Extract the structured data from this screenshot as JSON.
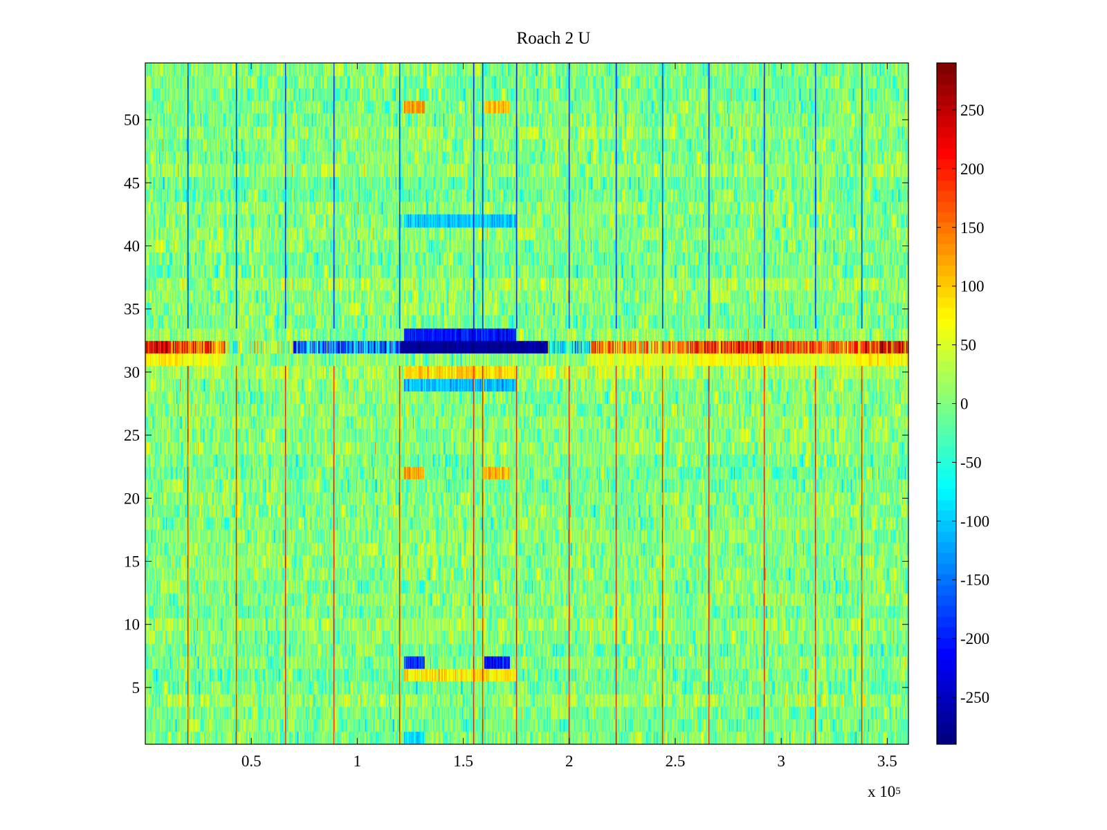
{
  "chart_data": {
    "type": "heatmap",
    "title": "Roach 2 U",
    "xlabel": "",
    "ylabel": "",
    "x_multiplier": "x 10",
    "x_multiplier_exp": "5",
    "xlim": [
      0.0,
      3.6
    ],
    "ylim": [
      0.5,
      54.5
    ],
    "rows": 54,
    "columns": 3600,
    "x_ticks": [
      0.5,
      1,
      1.5,
      2,
      2.5,
      3,
      3.5
    ],
    "x_tick_labels": [
      "0.5",
      "1",
      "1.5",
      "2",
      "2.5",
      "3",
      "3.5"
    ],
    "y_ticks": [
      5,
      10,
      15,
      20,
      25,
      30,
      35,
      40,
      45,
      50
    ],
    "y_tick_labels": [
      "5",
      "10",
      "15",
      "20",
      "25",
      "30",
      "35",
      "40",
      "45",
      "50"
    ],
    "colorbar": {
      "colormap": "jet",
      "clim": [
        -290,
        290
      ],
      "ticks": [
        250,
        200,
        150,
        100,
        50,
        0,
        -50,
        -100,
        -150,
        -200,
        -250
      ],
      "tick_labels": [
        "250",
        "200",
        "150",
        "100",
        "50",
        "0",
        "-50",
        "-100",
        "-150",
        "-200",
        "-250"
      ]
    },
    "background_level": {
      "mean": 0,
      "spread": 45
    },
    "periodic_spike_columns": [
      0.2,
      0.43,
      0.66,
      0.89,
      1.2,
      1.55,
      1.59,
      1.75,
      2.0,
      2.22,
      2.44,
      2.66,
      2.92,
      3.16,
      3.38
    ],
    "spike_segments_by_rows": [
      {
        "rows": [
          1,
          30
        ],
        "value": 240
      },
      {
        "rows": [
          31,
          33
        ],
        "value": 0
      },
      {
        "rows": [
          34,
          54
        ],
        "value": -230
      }
    ],
    "highlighted_row": {
      "row": 32,
      "segments": [
        {
          "x": [
            0.0,
            0.18
          ],
          "value": 230
        },
        {
          "x": [
            0.18,
            0.38
          ],
          "value": 170
        },
        {
          "x": [
            0.38,
            0.7
          ],
          "value": 20
        },
        {
          "x": [
            0.7,
            1.2
          ],
          "value": -150
        },
        {
          "x": [
            1.2,
            1.9
          ],
          "value": -275
        },
        {
          "x": [
            1.9,
            2.1
          ],
          "value": -80
        },
        {
          "x": [
            2.1,
            2.6
          ],
          "value": 140
        },
        {
          "x": [
            2.6,
            3.0
          ],
          "value": 190
        },
        {
          "x": [
            3.0,
            3.35
          ],
          "value": 150
        },
        {
          "x": [
            3.35,
            3.6
          ],
          "value": 200
        }
      ]
    },
    "region_blocks": [
      {
        "x": [
          1.22,
          1.75
        ],
        "rows": [
          33,
          33
        ],
        "value": -210
      },
      {
        "x": [
          1.22,
          1.32
        ],
        "rows": [
          7,
          7
        ],
        "value": -190
      },
      {
        "x": [
          1.6,
          1.72
        ],
        "rows": [
          7,
          7
        ],
        "value": -210
      },
      {
        "x": [
          1.22,
          1.32
        ],
        "rows": [
          51,
          51
        ],
        "value": 130
      },
      {
        "x": [
          1.6,
          1.72
        ],
        "rows": [
          51,
          51
        ],
        "value": 110
      },
      {
        "x": [
          1.22,
          1.32
        ],
        "rows": [
          22,
          22
        ],
        "value": 120
      },
      {
        "x": [
          1.6,
          1.72
        ],
        "rows": [
          22,
          22
        ],
        "value": 110
      },
      {
        "x": [
          1.22,
          1.75
        ],
        "rows": [
          6,
          6
        ],
        "value": 80
      },
      {
        "x": [
          1.22,
          1.32
        ],
        "rows": [
          1,
          1
        ],
        "value": -90
      },
      {
        "x": [
          1.22,
          1.75
        ],
        "rows": [
          29,
          29
        ],
        "value": -110
      },
      {
        "x": [
          1.22,
          1.75
        ],
        "rows": [
          30,
          30
        ],
        "value": 90
      },
      {
        "x": [
          1.22,
          1.75
        ],
        "rows": [
          42,
          42
        ],
        "value": -100
      }
    ]
  }
}
